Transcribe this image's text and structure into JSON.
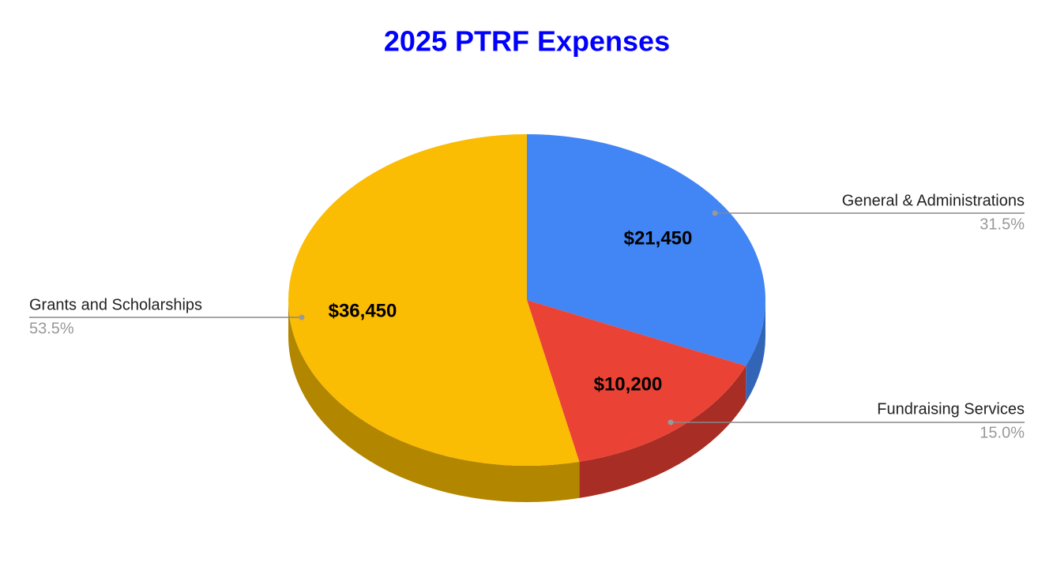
{
  "chart_data": {
    "type": "pie3d",
    "title": "2025 PTRF Expenses",
    "categories": [
      "General & Administrations",
      "Fundraising Services",
      "Grants and Scholarships"
    ],
    "values": [
      21450,
      10200,
      36450
    ],
    "value_labels": [
      "$21,450",
      "$10,200",
      "$36,450"
    ],
    "percentages": [
      31.5,
      15.0,
      53.5
    ],
    "percentage_labels": [
      "31.5%",
      "15.0%",
      "53.5%"
    ],
    "colors": [
      "#4285f4",
      "#ea4335",
      "#fbbc04"
    ],
    "side_colors": [
      "#3265b8",
      "#a82d25",
      "#b38600"
    ],
    "title_color": "#0000ff"
  }
}
